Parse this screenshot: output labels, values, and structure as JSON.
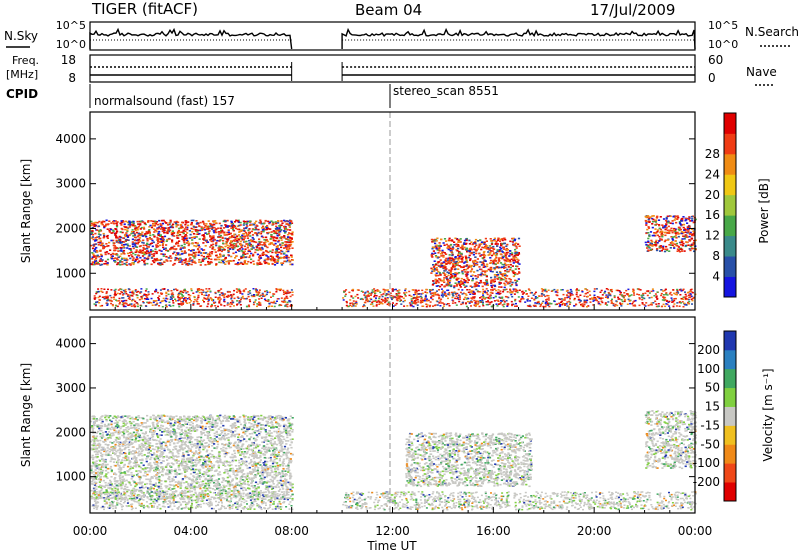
{
  "header": {
    "title": "TIGER (fitACF)",
    "beam": "Beam 04",
    "date": "17/Jul/2009"
  },
  "status_panel": {
    "nsky_label": "N.Sky",
    "nsearch_label": "N.Search",
    "nsky_ticks": [
      "10^5",
      "10^0"
    ],
    "nsearch_ticks": [
      "10^5",
      "10^0"
    ],
    "freq_label_line1": "Freq.",
    "freq_label_line2": "[MHz]",
    "freq_ticks": [
      "18",
      "8"
    ],
    "nave_label": "Nave",
    "nave_ticks": [
      "60",
      "0"
    ],
    "cpid_label": "CPID",
    "cpid_entries": [
      {
        "name": "normalsound (fast) 157",
        "start_hour": 0
      },
      {
        "name": "stereo_scan 8551",
        "start_hour": 12
      }
    ]
  },
  "panels": {
    "ylabel": "Slant Range [km]",
    "y_ticks": [
      "1000",
      "2000",
      "3000",
      "4000"
    ],
    "x_ticks": [
      "00:00",
      "04:00",
      "08:00",
      "12:00",
      "16:00",
      "20:00",
      "00:00"
    ],
    "xlabel": "Time UT"
  },
  "power_scale": {
    "label": "Power [dB]",
    "ticks": [
      "4",
      "8",
      "12",
      "16",
      "20",
      "24",
      "28"
    ],
    "colors": [
      "#1515e0",
      "#2850a8",
      "#3a8a8a",
      "#48a848",
      "#a0c83c",
      "#f0c814",
      "#f08c14",
      "#f03c14",
      "#e00000"
    ]
  },
  "velocity_scale": {
    "label": "Velocity [m s⁻¹]",
    "ticks": [
      "200",
      "100",
      "50",
      "15",
      "-15",
      "-50",
      "-100",
      "-200"
    ],
    "colors": [
      "#2038b0",
      "#2a80c0",
      "#40a860",
      "#80d040",
      "#c8c8c4",
      "#f0c020",
      "#f08a18",
      "#f04818",
      "#e00000"
    ]
  },
  "chart_data": {
    "type": "heatmap",
    "x_range_hours": [
      0,
      24
    ],
    "y_range_km": [
      180,
      4600
    ],
    "data_gap_hours": [
      8,
      10
    ],
    "power_regions": [
      {
        "t_start": 0,
        "t_end": 8,
        "r_min": 1200,
        "r_max": 2200,
        "level_db": 24
      },
      {
        "t_start": 13.5,
        "t_end": 17,
        "r_min": 700,
        "r_max": 1800,
        "level_db": 24
      },
      {
        "t_start": 22,
        "t_end": 24,
        "r_min": 1500,
        "r_max": 2300,
        "level_db": 24
      }
    ],
    "velocity_regions": [
      {
        "t_start": 0,
        "t_end": 8,
        "r_min": 500,
        "r_max": 2400,
        "velocity_ms": 0
      },
      {
        "t_start": 12.5,
        "t_end": 17.5,
        "r_min": 800,
        "r_max": 2000,
        "velocity_ms": 0
      },
      {
        "t_start": 22,
        "t_end": 24,
        "r_min": 1200,
        "r_max": 2500,
        "velocity_ms": 0
      }
    ]
  }
}
